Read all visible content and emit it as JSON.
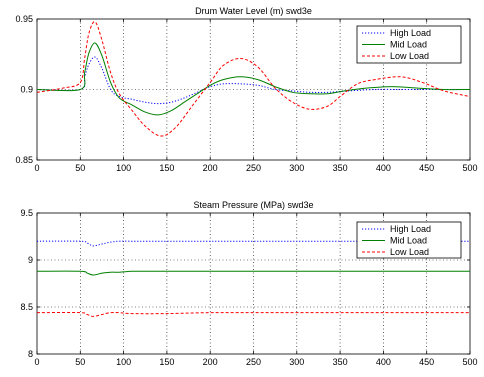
{
  "chart_data": [
    {
      "type": "line",
      "title": "Drum Water Level (m) swd3e",
      "xlim": [
        0,
        500
      ],
      "ylim": [
        0.85,
        0.95
      ],
      "xticks": [
        0,
        50,
        100,
        150,
        200,
        250,
        300,
        350,
        400,
        450,
        500
      ],
      "yticks": [
        0.85,
        0.9,
        0.95
      ],
      "ytick_labels": [
        "0.85",
        "0.9",
        "0.95"
      ],
      "grid": true,
      "legend_position": "top-right",
      "series": [
        {
          "name": "High Load",
          "color": "#0000ff",
          "dash": "dotted",
          "x": [
            0,
            50,
            55,
            60,
            67,
            75,
            85,
            95,
            110,
            125,
            140,
            155,
            170,
            185,
            200,
            215,
            235,
            255,
            275,
            295,
            315,
            335,
            360,
            390,
            420,
            450,
            480,
            500
          ],
          "y": [
            0.9,
            0.9,
            0.909,
            0.918,
            0.923,
            0.915,
            0.9,
            0.895,
            0.893,
            0.891,
            0.89,
            0.891,
            0.894,
            0.898,
            0.902,
            0.904,
            0.904,
            0.903,
            0.9,
            0.899,
            0.898,
            0.898,
            0.899,
            0.9,
            0.9,
            0.9,
            0.9,
            0.9
          ]
        },
        {
          "name": "Mid Load",
          "color": "#008000",
          "dash": "solid",
          "x": [
            0,
            50,
            55,
            60,
            67,
            75,
            85,
            95,
            110,
            125,
            140,
            155,
            170,
            185,
            200,
            215,
            235,
            255,
            275,
            295,
            315,
            335,
            355,
            380,
            410,
            440,
            470,
            500
          ],
          "y": [
            0.9,
            0.9,
            0.912,
            0.926,
            0.933,
            0.924,
            0.905,
            0.894,
            0.889,
            0.884,
            0.882,
            0.885,
            0.891,
            0.897,
            0.903,
            0.907,
            0.909,
            0.907,
            0.902,
            0.898,
            0.897,
            0.897,
            0.899,
            0.901,
            0.902,
            0.901,
            0.9,
            0.9
          ]
        },
        {
          "name": "Low Load",
          "color": "#ff0000",
          "dash": "dashed",
          "x": [
            0,
            30,
            50,
            55,
            60,
            67,
            75,
            85,
            95,
            110,
            125,
            143,
            160,
            180,
            200,
            215,
            235,
            255,
            275,
            295,
            315,
            335,
            350,
            370,
            390,
            420,
            445,
            470,
            500
          ],
          "y": [
            0.898,
            0.901,
            0.905,
            0.922,
            0.94,
            0.948,
            0.935,
            0.912,
            0.897,
            0.885,
            0.874,
            0.867,
            0.873,
            0.889,
            0.905,
            0.917,
            0.922,
            0.916,
            0.901,
            0.891,
            0.886,
            0.888,
            0.895,
            0.904,
            0.907,
            0.909,
            0.905,
            0.899,
            0.895
          ]
        }
      ]
    },
    {
      "type": "line",
      "title": "Steam Pressure (MPa) swd3e",
      "xlim": [
        0,
        500
      ],
      "ylim": [
        8,
        9.5
      ],
      "xticks": [
        0,
        50,
        100,
        150,
        200,
        250,
        300,
        350,
        400,
        450,
        500
      ],
      "yticks": [
        8,
        8.5,
        9,
        9.5
      ],
      "ytick_labels": [
        "8",
        "8.5",
        "9",
        "9.5"
      ],
      "grid": true,
      "legend_position": "top-right",
      "series": [
        {
          "name": "High Load",
          "color": "#0000ff",
          "dash": "dotted",
          "x": [
            0,
            50,
            58,
            65,
            75,
            85,
            95,
            110,
            150,
            200,
            300,
            500
          ],
          "y": [
            9.2,
            9.2,
            9.18,
            9.15,
            9.17,
            9.19,
            9.2,
            9.2,
            9.2,
            9.2,
            9.2,
            9.2
          ]
        },
        {
          "name": "Mid Load",
          "color": "#008000",
          "dash": "solid",
          "x": [
            0,
            50,
            58,
            65,
            75,
            85,
            95,
            110,
            150,
            200,
            300,
            500
          ],
          "y": [
            8.88,
            8.88,
            8.86,
            8.84,
            8.86,
            8.87,
            8.87,
            8.88,
            8.88,
            8.88,
            8.88,
            8.88
          ]
        },
        {
          "name": "Low Load",
          "color": "#ff0000",
          "dash": "dashed",
          "x": [
            0,
            50,
            58,
            65,
            75,
            85,
            95,
            110,
            150,
            200,
            250,
            300,
            400,
            500
          ],
          "y": [
            8.44,
            8.44,
            8.42,
            8.4,
            8.42,
            8.44,
            8.44,
            8.43,
            8.43,
            8.44,
            8.44,
            8.44,
            8.44,
            8.44
          ]
        }
      ]
    }
  ]
}
